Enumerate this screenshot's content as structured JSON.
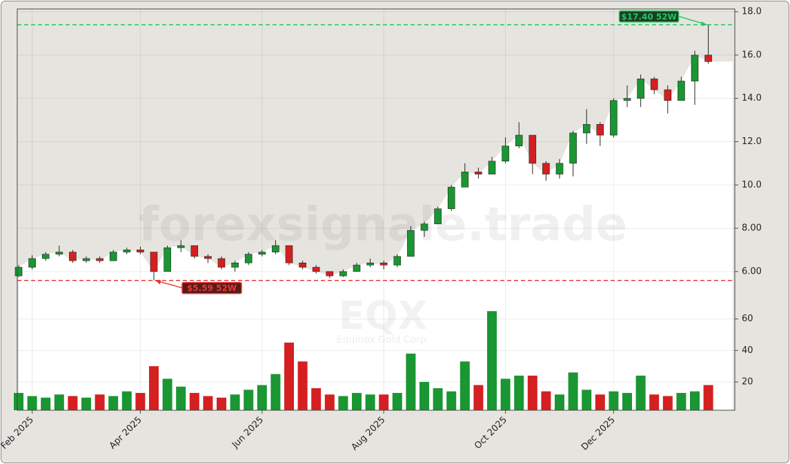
{
  "chart_data": {
    "type": "candlestick",
    "watermark": "forexsignale.trade",
    "ticker": "EQX",
    "company": "Equinox Gold Corp.",
    "categories": [
      null,
      "Feb 2025",
      null,
      null,
      null,
      null,
      null,
      null,
      null,
      "Apr 2025",
      null,
      null,
      null,
      null,
      null,
      null,
      null,
      null,
      "Jun 2025",
      null,
      null,
      null,
      null,
      null,
      null,
      null,
      null,
      "Aug 2025",
      null,
      null,
      null,
      null,
      null,
      null,
      null,
      null,
      "Oct 2025",
      null,
      null,
      null,
      null,
      null,
      null,
      null,
      "Dec 2025",
      null,
      null,
      null,
      null,
      null,
      null,
      null
    ],
    "open": [
      5.8,
      6.2,
      6.6,
      6.8,
      6.9,
      6.5,
      6.6,
      6.5,
      6.9,
      7.0,
      6.9,
      6.0,
      7.1,
      7.2,
      6.7,
      6.6,
      6.2,
      6.4,
      6.8,
      6.9,
      7.2,
      6.4,
      6.2,
      6.0,
      5.8,
      6.0,
      6.3,
      6.4,
      6.3,
      6.7,
      7.9,
      8.2,
      8.9,
      9.9,
      10.6,
      10.5,
      11.1,
      11.8,
      12.3,
      11.0,
      10.5,
      11.0,
      12.4,
      12.8,
      12.3,
      13.9,
      14.0,
      14.9,
      14.4,
      13.9,
      14.8,
      16.0
    ],
    "high": [
      6.3,
      6.75,
      6.9,
      7.2,
      7.0,
      6.7,
      6.7,
      7.0,
      7.1,
      7.15,
      6.9,
      7.2,
      7.45,
      7.2,
      6.8,
      6.7,
      6.5,
      6.9,
      7.0,
      7.45,
      7.2,
      6.5,
      6.3,
      6.0,
      6.1,
      6.4,
      6.6,
      6.5,
      6.8,
      8.1,
      8.3,
      9.0,
      10.0,
      11.0,
      10.8,
      11.3,
      12.2,
      12.9,
      12.3,
      11.1,
      11.2,
      12.5,
      13.5,
      12.9,
      14.0,
      14.6,
      15.1,
      15.0,
      14.6,
      15.0,
      16.2,
      17.4
    ],
    "low": [
      5.75,
      6.1,
      6.5,
      6.7,
      6.4,
      6.4,
      6.4,
      6.5,
      6.8,
      6.8,
      5.59,
      6.0,
      6.9,
      6.6,
      6.4,
      6.1,
      6.0,
      6.3,
      6.7,
      6.8,
      6.3,
      6.1,
      5.9,
      5.7,
      5.75,
      6.0,
      6.2,
      6.1,
      6.2,
      6.7,
      7.6,
      8.2,
      8.8,
      9.9,
      10.3,
      10.5,
      11.0,
      11.7,
      10.5,
      10.2,
      10.3,
      10.4,
      11.9,
      11.8,
      12.2,
      13.6,
      13.6,
      14.2,
      13.3,
      13.9,
      13.7,
      15.6
    ],
    "close": [
      6.2,
      6.6,
      6.8,
      6.9,
      6.5,
      6.6,
      6.5,
      6.9,
      7.0,
      6.9,
      6.0,
      7.1,
      7.2,
      6.7,
      6.6,
      6.2,
      6.4,
      6.8,
      6.9,
      7.2,
      6.4,
      6.2,
      6.0,
      5.8,
      6.0,
      6.3,
      6.4,
      6.3,
      6.7,
      7.9,
      8.2,
      8.9,
      9.9,
      10.6,
      10.5,
      11.1,
      11.8,
      12.3,
      11.0,
      10.5,
      11.0,
      12.4,
      12.8,
      12.3,
      13.9,
      14.0,
      14.9,
      14.4,
      13.9,
      14.8,
      16.0,
      15.7
    ],
    "volume": [
      13,
      11,
      10,
      12,
      11,
      10,
      12,
      11,
      14,
      13,
      30,
      22,
      17,
      13,
      11,
      10,
      12,
      15,
      18,
      25,
      45,
      33,
      16,
      12,
      11,
      13,
      12,
      12,
      13,
      38,
      20,
      16,
      14,
      33,
      18,
      65,
      22,
      24,
      24,
      14,
      12,
      26,
      15,
      12,
      14,
      13,
      24,
      12,
      11,
      13,
      14,
      18
    ],
    "up_color": "#1a9632",
    "down_color": "#d42020",
    "area_color": "#ffffff",
    "background": "#e6e4df",
    "ylim": [
      4.69,
      18.13
    ],
    "yticks": [
      {
        "value": 6,
        "label": "6.00"
      },
      {
        "value": 8,
        "label": "8.00"
      },
      {
        "value": 10,
        "label": "10.0"
      },
      {
        "value": 12,
        "label": "12.0"
      },
      {
        "value": 14,
        "label": "14.0"
      },
      {
        "value": 16,
        "label": "16.0"
      },
      {
        "value": 18,
        "label": "18.0"
      }
    ],
    "vlim": [
      2,
      66
    ],
    "vticks": [
      20,
      40,
      60
    ],
    "grid": true,
    "annotations": [
      {
        "value": 17.4,
        "label": "$17.40 52W",
        "color": "#22c55e"
      },
      {
        "value": 5.59,
        "label": "$5.59 52W",
        "color": "#e53935"
      }
    ]
  }
}
